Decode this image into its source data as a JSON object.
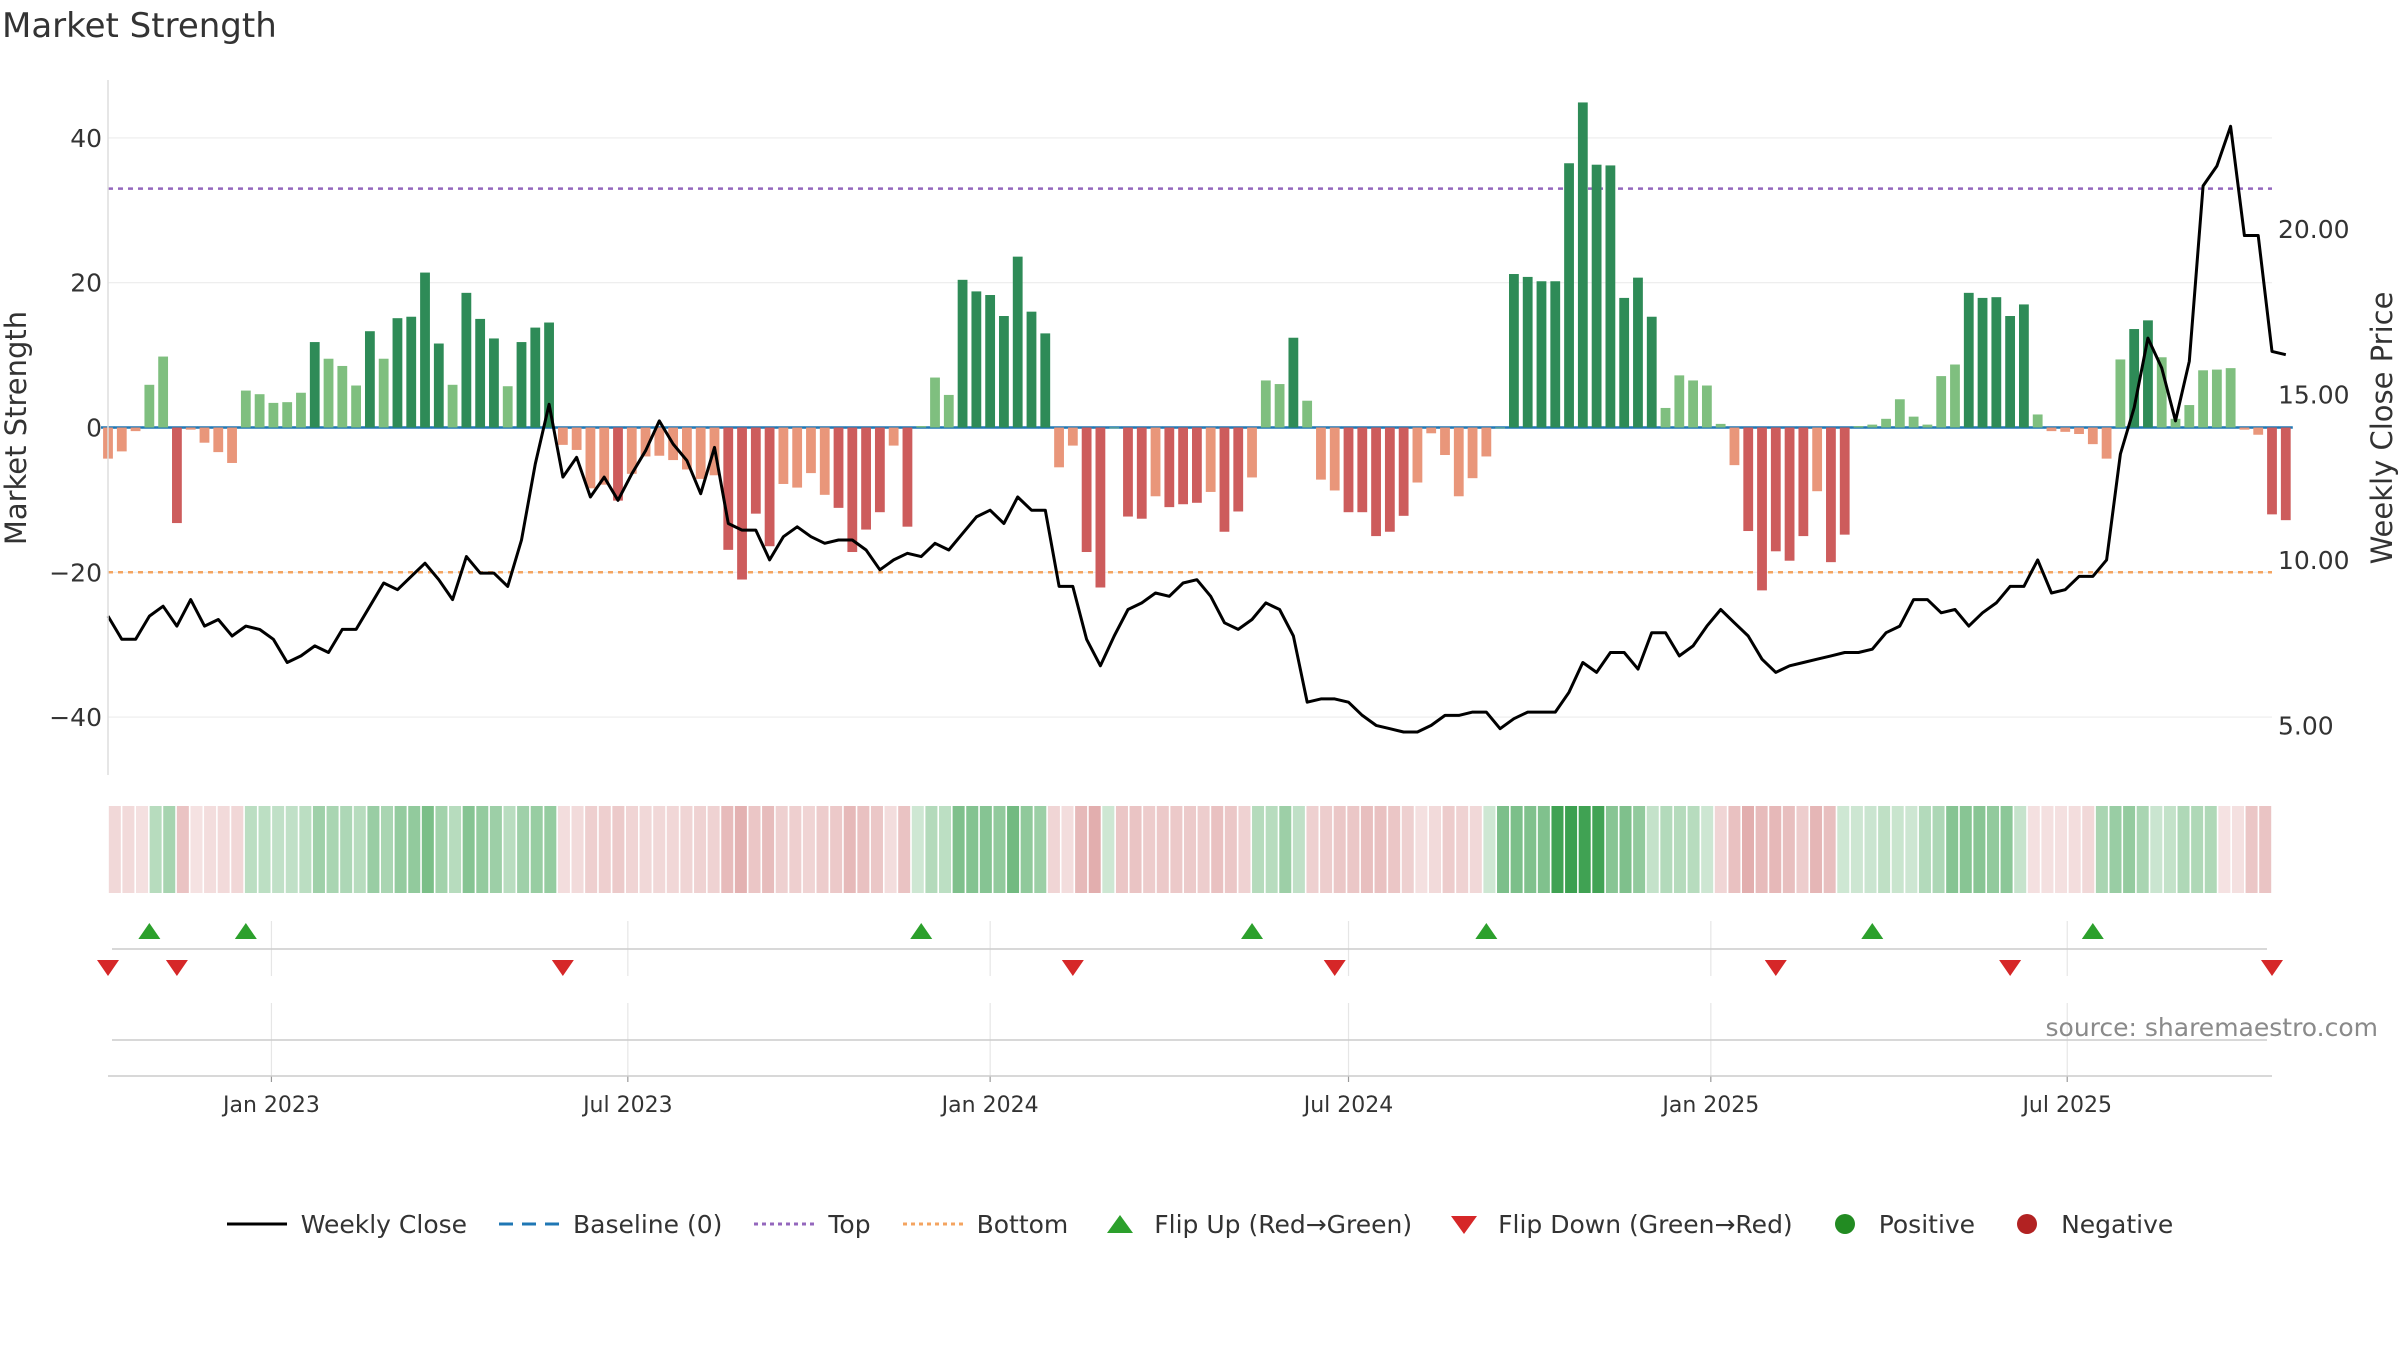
{
  "title": "Market Strength",
  "source": "source: sharemaestro.com",
  "colors": {
    "positive_dark": "#2e8b57",
    "positive_light": "#7fbf7f",
    "negative_dark": "#cd5c5c",
    "negative_light": "#e9967a",
    "close_line": "#000000",
    "baseline": "#1f77b4",
    "top": "#9467bd",
    "bottom": "#f4a460",
    "flip_up": "#2ca02c",
    "flip_down": "#d62728",
    "positive_dot": "#228b22",
    "negative_dot": "#b22222"
  },
  "legend": [
    {
      "label": "Weekly Close",
      "icon": "solid-line",
      "color": "#000000"
    },
    {
      "label": "Baseline (0)",
      "icon": "dashed-line",
      "color": "#1f77b4"
    },
    {
      "label": "Top",
      "icon": "dotted-line",
      "color": "#9467bd"
    },
    {
      "label": "Bottom",
      "icon": "dotted-line",
      "color": "#f4a460"
    },
    {
      "label": "Flip Up (Red→Green)",
      "icon": "triangle-up",
      "color": "#2ca02c"
    },
    {
      "label": "Flip Down (Green→Red)",
      "icon": "triangle-down",
      "color": "#d62728"
    },
    {
      "label": "Positive",
      "icon": "circle",
      "color": "#228b22"
    },
    {
      "label": "Negative",
      "icon": "circle",
      "color": "#b22222"
    }
  ],
  "chart_data": {
    "type": "bar",
    "title": "Market Strength",
    "ylabel": "Market Strength",
    "y2label": "Weekly Close Price",
    "ylim": [
      -48,
      48
    ],
    "y2lim": [
      3.5,
      24.5
    ],
    "yticks": [
      -40,
      -20,
      0,
      20,
      40
    ],
    "yticklabels": [
      "−40",
      "−20",
      "0",
      "20",
      "40"
    ],
    "y2ticks": [
      5,
      10,
      15,
      20
    ],
    "y2ticklabels": [
      "5.00",
      "10.00",
      "15.00",
      "20.00"
    ],
    "x_date_start": "2022-10-10",
    "x_date_end": "2025-10-13",
    "xticks": [
      "2023-01-01",
      "2023-07-01",
      "2024-01-01",
      "2024-07-01",
      "2025-01-01",
      "2025-07-01"
    ],
    "xticklabels": [
      "Jan 2023",
      "Jul 2023",
      "Jan 2024",
      "Jul 2024",
      "Jan 2025",
      "Jul 2025"
    ],
    "top_line": 33,
    "bottom_line": -20,
    "baseline": 0,
    "grid": true,
    "legend_position": "bottom",
    "strength": [
      -4.3,
      -3.3,
      -0.5,
      5.9,
      9.8,
      -13.2,
      -0.3,
      -2.1,
      -3.4,
      -4.9,
      5.1,
      4.6,
      3.4,
      3.5,
      4.8,
      11.8,
      9.5,
      8.5,
      5.8,
      13.3,
      9.5,
      15.1,
      15.3,
      21.4,
      11.6,
      5.9,
      18.6,
      15.0,
      12.3,
      5.7,
      11.8,
      13.8,
      14.5,
      -2.4,
      -3.1,
      -8.4,
      -7.9,
      -10.1,
      -6.4,
      -4.0,
      -3.9,
      -4.5,
      -5.8,
      -7.1,
      -6.6,
      -16.9,
      -21.0,
      -11.9,
      -16.4,
      -7.8,
      -8.3,
      -6.3,
      -9.3,
      -11.1,
      -17.2,
      -14.1,
      -11.7,
      -2.5,
      -13.7,
      0.2,
      6.9,
      4.5,
      20.4,
      18.8,
      18.3,
      15.4,
      23.6,
      16.0,
      13.0,
      -5.5,
      -2.5,
      -17.2,
      -22.1,
      0.0,
      -12.3,
      -12.6,
      -9.5,
      -11.0,
      -10.6,
      -10.4,
      -8.9,
      -14.4,
      -11.6,
      -6.9,
      6.5,
      6.0,
      12.4,
      3.7,
      -7.2,
      -8.7,
      -11.7,
      -11.7,
      -15.0,
      -14.4,
      -12.2,
      -7.6,
      -0.8,
      -3.8,
      -9.5,
      -7.0,
      -4.0,
      0.0,
      21.2,
      20.8,
      20.2,
      20.2,
      36.5,
      44.9,
      36.3,
      36.2,
      17.9,
      20.7,
      15.3,
      2.7,
      7.2,
      6.5,
      5.8,
      0.5,
      -5.2,
      -14.3,
      -22.5,
      -17.1,
      -18.4,
      -15.0,
      -8.8,
      -18.6,
      -14.8,
      0.2,
      0.4,
      1.2,
      3.9,
      1.5,
      0.4,
      7.1,
      8.7,
      18.6,
      17.9,
      18.0,
      15.4,
      17.0,
      1.8,
      -0.5,
      -0.6,
      -0.9,
      -2.3,
      -4.3,
      9.4,
      13.6,
      14.8,
      9.7,
      1.2,
      3.1,
      7.9,
      8.0,
      8.2,
      -0.3,
      -1.0,
      -12.0,
      -12.8
    ],
    "close": [
      8.3,
      7.6,
      7.6,
      8.3,
      8.6,
      8.0,
      8.8,
      8.0,
      8.2,
      7.7,
      8.0,
      7.9,
      7.6,
      6.9,
      7.1,
      7.4,
      7.2,
      7.9,
      7.9,
      8.6,
      9.3,
      9.1,
      9.5,
      9.9,
      9.4,
      8.8,
      10.1,
      9.6,
      9.6,
      9.2,
      10.6,
      12.9,
      14.7,
      12.5,
      13.1,
      11.9,
      12.5,
      11.8,
      12.6,
      13.3,
      14.2,
      13.5,
      13.0,
      12.0,
      13.4,
      11.1,
      10.9,
      10.9,
      10.0,
      10.7,
      11.0,
      10.7,
      10.5,
      10.6,
      10.6,
      10.3,
      9.7,
      10.0,
      10.2,
      10.1,
      10.5,
      10.3,
      10.8,
      11.3,
      11.5,
      11.1,
      11.9,
      11.5,
      11.5,
      9.2,
      9.2,
      7.6,
      6.8,
      7.7,
      8.5,
      8.7,
      9.0,
      8.9,
      9.3,
      9.4,
      8.9,
      8.1,
      7.9,
      8.2,
      8.7,
      8.5,
      7.7,
      5.7,
      5.8,
      5.8,
      5.7,
      5.3,
      5.0,
      4.9,
      4.8,
      4.8,
      5.0,
      5.3,
      5.3,
      5.4,
      5.4,
      4.9,
      5.2,
      5.4,
      5.4,
      5.4,
      6.0,
      6.9,
      6.6,
      7.2,
      7.2,
      6.7,
      7.8,
      7.8,
      7.1,
      7.4,
      8.0,
      8.5,
      8.1,
      7.7,
      7.0,
      6.6,
      6.8,
      6.9,
      7.0,
      7.1,
      7.2,
      7.2,
      7.3,
      7.8,
      8.0,
      8.8,
      8.8,
      8.4,
      8.5,
      8.0,
      8.4,
      8.7,
      9.2,
      9.2,
      10.0,
      9.0,
      9.1,
      9.5,
      9.5,
      10.0,
      13.2,
      14.6,
      16.7,
      15.8,
      14.2,
      16.0,
      21.3,
      21.9,
      23.1,
      19.8,
      19.8,
      16.3,
      16.2
    ],
    "signal_weeks": [
      0,
      3,
      5,
      10,
      33,
      59,
      70,
      83,
      89,
      100,
      121,
      128,
      138,
      144,
      157
    ],
    "signal_labels": [
      "Flip Down",
      "Flip Up",
      "Flip Down",
      "Flip Up",
      "Flip Down",
      "Flip Up",
      "Flip Down",
      "Flip Up",
      "Flip Down",
      "Flip Up",
      "Flip Down",
      "Flip Up",
      "Flip Down",
      "Flip Up",
      "Flip Down"
    ]
  }
}
